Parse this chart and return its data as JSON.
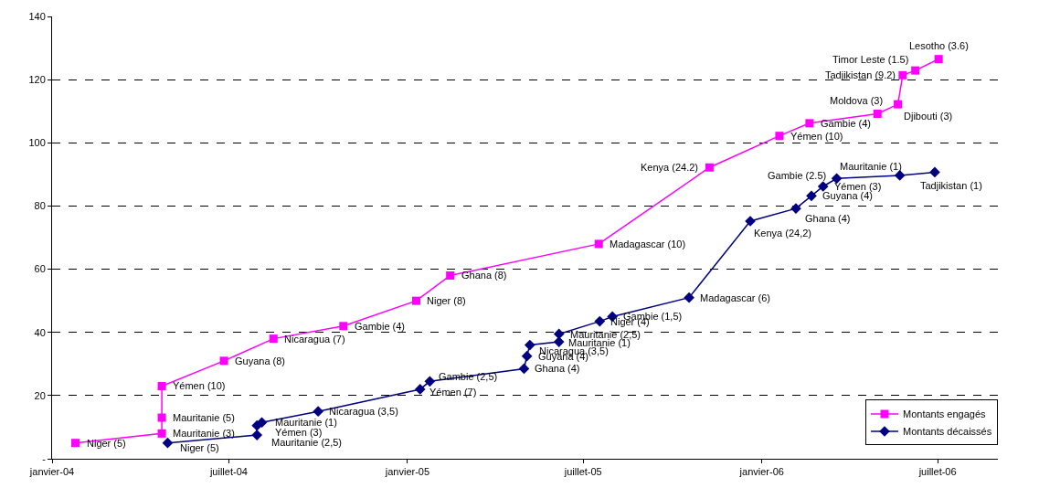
{
  "chart_data": {
    "type": "line",
    "series": [
      {
        "name": "Montants engagés",
        "color": "#ff00ff",
        "marker": "square",
        "x": [
          "2004-01-25",
          "2004-04-23",
          "2004-04-23",
          "2004-04-23",
          "2004-06-26",
          "2004-08-16",
          "2004-10-27",
          "2005-01-10",
          "2005-02-14",
          "2005-07-17",
          "2005-11-08",
          "2006-01-19",
          "2006-02-19",
          "2006-04-30",
          "2006-05-21",
          "2006-05-26",
          "2006-06-08",
          "2006-07-02"
        ],
        "values": [
          5,
          8,
          13,
          23,
          31,
          38,
          42,
          50,
          58,
          68,
          92.2,
          102.2,
          106.2,
          109.2,
          112.2,
          121.4,
          122.9,
          126.5
        ]
      },
      {
        "name": "Montants décaissés",
        "color": "#000080",
        "marker": "diamond",
        "x": [
          "2004-04-29",
          "2004-07-30",
          "2004-07-30",
          "2004-08-04",
          "2004-10-01",
          "2005-01-14",
          "2005-01-24",
          "2005-05-01",
          "2005-05-04",
          "2005-05-07",
          "2005-06-06",
          "2005-06-06",
          "2005-07-18",
          "2005-07-31",
          "2005-10-18",
          "2005-12-20",
          "2006-02-05",
          "2006-02-21",
          "2006-03-05",
          "2006-03-19",
          "2006-05-23",
          "2006-06-28"
        ],
        "values": [
          5,
          7.5,
          10.5,
          11.5,
          15,
          22,
          24.5,
          28.5,
          32.5,
          36,
          37,
          39.5,
          43.5,
          45,
          51,
          75.2,
          79.2,
          83.2,
          86.2,
          88.7,
          89.7,
          90.7
        ]
      }
    ],
    "xlim": [
      "2004-01-01",
      "2006-09-01"
    ],
    "xticks": [
      {
        "value": "2004-01-01",
        "label": "janvier-04"
      },
      {
        "value": "2004-07-01",
        "label": "juillet-04"
      },
      {
        "value": "2005-01-01",
        "label": "janvier-05"
      },
      {
        "value": "2005-07-01",
        "label": "juillet-05"
      },
      {
        "value": "2006-01-01",
        "label": "janvier-06"
      },
      {
        "value": "2006-07-01",
        "label": "juillet-06"
      }
    ],
    "ylim": [
      0,
      140
    ],
    "yticks": [
      {
        "value": 0,
        "label": "-"
      },
      20,
      40,
      60,
      80,
      100,
      120,
      140
    ],
    "grid": "y",
    "legend": "bottom right",
    "line_style": "solid",
    "annotations": [
      {
        "text": "Niger (5)",
        "x": "2004-01-25",
        "y": 5
      },
      {
        "text": "Mauritanie (3)",
        "x": "2004-04-23",
        "y": 8
      },
      {
        "text": "Mauritanie (5)",
        "x": "2004-04-23",
        "y": 13
      },
      {
        "text": "Yémen (10)",
        "x": "2004-04-23",
        "y": 23
      },
      {
        "text": "Guyana (8)",
        "x": "2004-06-26",
        "y": 31
      },
      {
        "text": "Nicaragua (7)",
        "x": "2004-08-16",
        "y": 38
      },
      {
        "text": "Gambie (4)",
        "x": "2004-10-27",
        "y": 42
      },
      {
        "text": "Niger (8)",
        "x": "2005-01-10",
        "y": 50
      },
      {
        "text": "Ghana (8)",
        "x": "2005-02-14",
        "y": 58
      },
      {
        "text": "Madagascar (10)",
        "x": "2005-07-17",
        "y": 68
      },
      {
        "text": "Kenya (24.2)",
        "x": "2005-11-08",
        "y": 92.2
      },
      {
        "text": "Yémen (10)",
        "x": "2006-01-19",
        "y": 102.2
      },
      {
        "text": "Gambie (4)",
        "x": "2006-02-19",
        "y": 106.2
      },
      {
        "text": "Moldova (3)",
        "x": "2006-04-30",
        "y": 109.2
      },
      {
        "text": "Djibouti (3)",
        "x": "2006-05-21",
        "y": 112.2
      },
      {
        "text": "Tadjikistan (9.2)",
        "x": "2006-05-26",
        "y": 121.4
      },
      {
        "text": "Timor Leste (1.5)",
        "x": "2006-06-08",
        "y": 122.9
      },
      {
        "text": "Lesotho (3.6)",
        "x": "2006-07-02",
        "y": 126.5
      },
      {
        "text": "Niger (5)",
        "x": "2004-04-29",
        "y": 5
      },
      {
        "text": "Mauritanie (2,5)",
        "x": "2004-07-30",
        "y": 7.5
      },
      {
        "text": "Yémen (3)",
        "x": "2004-07-30",
        "y": 10.5
      },
      {
        "text": "Mauritanie (1)",
        "x": "2004-08-04",
        "y": 11.5
      },
      {
        "text": "Nicaragua (3,5)",
        "x": "2004-10-01",
        "y": 15
      },
      {
        "text": "Yémen (7)",
        "x": "2005-01-14",
        "y": 22
      },
      {
        "text": "Gambie (2,5)",
        "x": "2005-01-24",
        "y": 24.5
      },
      {
        "text": "Ghana (4)",
        "x": "2005-05-01",
        "y": 28.5
      },
      {
        "text": "Guyana (4)",
        "x": "2005-05-04",
        "y": 32.5
      },
      {
        "text": "Nicaragua (3,5)",
        "x": "2005-05-07",
        "y": 36
      },
      {
        "text": "Mauritanie (1)",
        "x": "2005-06-06",
        "y": 37
      },
      {
        "text": "Mauritanie (2,5)",
        "x": "2005-06-06",
        "y": 39.5
      },
      {
        "text": "Niger (4)",
        "x": "2005-07-18",
        "y": 43.5
      },
      {
        "text": "Gambie (1,5)",
        "x": "2005-07-31",
        "y": 45
      },
      {
        "text": "Madagascar (6)",
        "x": "2005-10-18",
        "y": 51
      },
      {
        "text": "Kenya (24,2)",
        "x": "2005-12-20",
        "y": 75.2
      },
      {
        "text": "Ghana (4)",
        "x": "2006-02-05",
        "y": 79.2
      },
      {
        "text": "Guyana (4)",
        "x": "2006-02-21",
        "y": 83.2
      },
      {
        "text": "Yémen (3)",
        "x": "2006-03-05",
        "y": 86.2
      },
      {
        "text": "Gambie (2.5)",
        "x": "2006-03-19",
        "y": 88.7
      },
      {
        "text": "Mauritanie (1)",
        "x": "2006-05-23",
        "y": 89.7
      },
      {
        "text": "Tadjikistan (1)",
        "x": "2006-06-28",
        "y": 90.7
      }
    ]
  }
}
